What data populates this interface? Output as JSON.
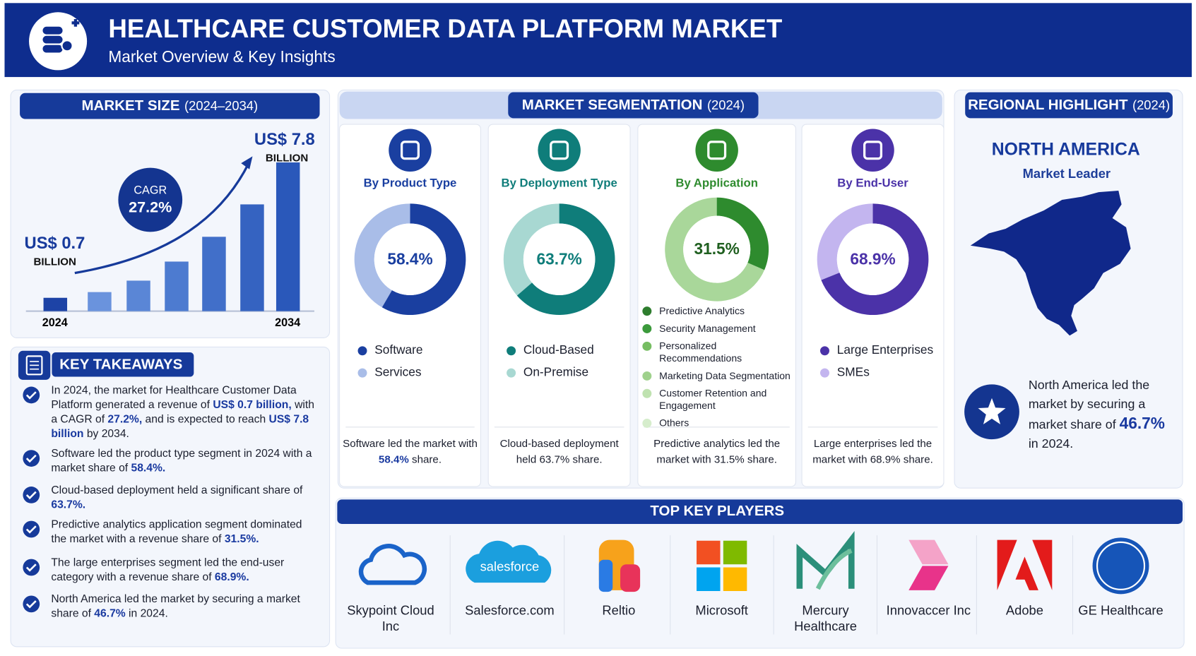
{
  "header": {
    "title": "HEALTHCARE CUSTOMER DATA PLATFORM MARKET",
    "subtitle": "Market Overview & Key Insights"
  },
  "market_size": {
    "title": "MARKET SIZE",
    "title_period": "(2024–2034)",
    "type": "bar",
    "categories": [
      "2024",
      null,
      null,
      null,
      null,
      null,
      "2034"
    ],
    "values": [
      0.7,
      1.0,
      1.6,
      2.6,
      3.9,
      5.6,
      7.8
    ],
    "colors": [
      "#1d43a6",
      "#6a93dd",
      "#5a86d6",
      "#4d7bd0",
      "#416fc9",
      "#3563c1",
      "#2a58ba"
    ],
    "ylim": [
      0,
      8
    ],
    "start_label": "US$ 0.7",
    "end_label": "US$ 7.8",
    "unit": "BILLION",
    "cagr_label": "CAGR",
    "cagr": "27.2%"
  },
  "key_takeaways": {
    "title": "KEY TAKEAWAYS",
    "items": [
      [
        "In 2024, the market for Healthcare Customer Data Platform generated a revenue of ",
        "US$ 0.7 billion,",
        " with a CAGR of ",
        "27.2%,",
        " and is expected to reach ",
        "US$ 7.8 billion",
        " by 2034."
      ],
      [
        "Software led the product type segment in 2024 with a market share of ",
        "58.4%."
      ],
      [
        "Cloud-based deployment held a significant share of ",
        "63.7%."
      ],
      [
        "Predictive analytics application segment dominated the market with a revenue share of ",
        "31.5%."
      ],
      [
        "The large enterprises segment led the end-user category with a revenue share of ",
        "68.9%."
      ],
      [
        "North America led the market by securing a market share of ",
        "46.7%",
        " in 2024."
      ]
    ]
  },
  "segmentation": {
    "title": "MARKET SEGMENTATION",
    "title_period": "(2024)",
    "panels": [
      {
        "title": "By Product Type",
        "value": 58.4,
        "value_label": "58.4%",
        "color": "#1a3fa0",
        "rest_color": "#a9bde8",
        "legend": [
          {
            "name": "Software",
            "color": "#1a3fa0"
          },
          {
            "name": "Services",
            "color": "#a9bde8"
          }
        ],
        "note": [
          "Software led the market with ",
          "58.4%",
          " share."
        ]
      },
      {
        "title": "By Deployment Type",
        "value": 63.7,
        "value_label": "63.7%",
        "color": "#0f7d7a",
        "rest_color": "#a8d8d2",
        "legend": [
          {
            "name": "Cloud-Based",
            "color": "#0f7d7a"
          },
          {
            "name": "On-Premise",
            "color": "#a8d8d2"
          }
        ],
        "note": [
          "Cloud-based deployment held 63.7% share."
        ]
      },
      {
        "title": "By Application",
        "value": 31.5,
        "value_label": "31.5%",
        "color": "#2e8b2e",
        "rest_color": "#a9d79a",
        "legend": [
          {
            "name": "Predictive Analytics",
            "color": "#2e7d2e"
          },
          {
            "name": "Security Management",
            "color": "#3c9a3c"
          },
          {
            "name": "Personalized Recommendations",
            "color": "#76bd62"
          },
          {
            "name": "Marketing Data Segmentation",
            "color": "#9fd18c"
          },
          {
            "name": "Customer Retention and Engagement",
            "color": "#bfe2b0"
          },
          {
            "name": "Others",
            "color": "#d6edcc"
          }
        ],
        "note": [
          "Predictive analytics led the market with 31.5% share."
        ]
      },
      {
        "title": "By End-User",
        "value": 68.9,
        "value_label": "68.9%",
        "color": "#4b32a8",
        "rest_color": "#c3b5ef",
        "legend": [
          {
            "name": "Large Enterprises",
            "color": "#4b32a8"
          },
          {
            "name": "SMEs",
            "color": "#c3b5ef"
          }
        ],
        "note": [
          "Large enterprises led the market with 68.9% share."
        ]
      }
    ]
  },
  "regional": {
    "title": "REGIONAL HIGHLIGHT",
    "title_period": "(2024)",
    "region": "NORTH AMERICA",
    "subtitle": "Market Leader",
    "text": [
      "North America led the market by securing a market share of ",
      "46.7%",
      " in 2024."
    ]
  },
  "players": {
    "title": "TOP KEY PLAYERS",
    "items": [
      {
        "name": "Skypoint Cloud Inc"
      },
      {
        "name": "Salesforce.com",
        "logo_text": "salesforce"
      },
      {
        "name": "Reltio"
      },
      {
        "name": "Microsoft"
      },
      {
        "name": "Mercury Healthcare"
      },
      {
        "name": "Innovaccer Inc"
      },
      {
        "name": "Adobe"
      },
      {
        "name": "GE Healthcare"
      }
    ]
  }
}
